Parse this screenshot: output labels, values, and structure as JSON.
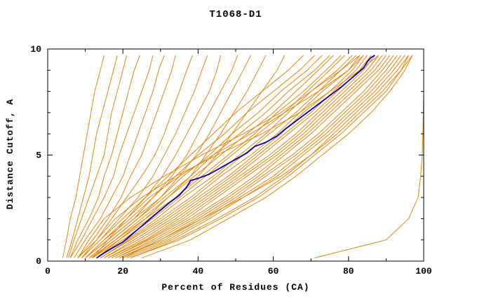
{
  "chart_data": {
    "type": "line",
    "title": "T1068-D1",
    "xlabel": "Percent of Residues (CA)",
    "ylabel": "Distance Cutoff, A",
    "xlim": [
      0,
      100
    ],
    "ylim": [
      0,
      10
    ],
    "xticks": [
      0,
      20,
      40,
      60,
      80,
      100
    ],
    "yticks": [
      0,
      5,
      10
    ],
    "x_minor_ticks": [
      10,
      30,
      50,
      70,
      90
    ],
    "y_minor_ticks": [
      1,
      2,
      3,
      4,
      6,
      7,
      8,
      9
    ],
    "grid": false,
    "legend": "none",
    "colors": {
      "models": "#e8860c",
      "highlight": "#0000bb",
      "frame": "#000000",
      "background": "#ffffff"
    },
    "y_levels": [
      0.15,
      1,
      2,
      3,
      4,
      5,
      6,
      7,
      8,
      9,
      9.7
    ],
    "model_curves_x_at_y_levels": [
      [
        4,
        5,
        6,
        7.5,
        8.5,
        9.5,
        10.5,
        11.5,
        12.5,
        14,
        15
      ],
      [
        5,
        6.5,
        8,
        9.5,
        11,
        12,
        13,
        14.5,
        16,
        17.5,
        18.5
      ],
      [
        5.5,
        7,
        9,
        11,
        13,
        15,
        16,
        17,
        18.5,
        20,
        21
      ],
      [
        6,
        8,
        11,
        13.5,
        15,
        17,
        18.5,
        20,
        21.5,
        23,
        24.5
      ],
      [
        6,
        9,
        12,
        15,
        17.5,
        19,
        21,
        23,
        25,
        27,
        28
      ],
      [
        7,
        10,
        14,
        17,
        20,
        22,
        24,
        26,
        28,
        29.5,
        31
      ],
      [
        8,
        12,
        16,
        19.5,
        22,
        25,
        27,
        29,
        31,
        33,
        34
      ],
      [
        8,
        13,
        17,
        21,
        25,
        28.5,
        31,
        33,
        35,
        37,
        38.5
      ],
      [
        9,
        14,
        19,
        24,
        28,
        31,
        34,
        36.5,
        39,
        41,
        42.5
      ],
      [
        10,
        15,
        21,
        26,
        30.5,
        34,
        37,
        40,
        43,
        45,
        46
      ],
      [
        10,
        16,
        23,
        28,
        33,
        37,
        40,
        43,
        46,
        49,
        50.5
      ],
      [
        11,
        17,
        24,
        30,
        35,
        39.5,
        43,
        46,
        49,
        52,
        54
      ],
      [
        12,
        18,
        26,
        32,
        38,
        42,
        46,
        49.5,
        53,
        56,
        58
      ],
      [
        13,
        19,
        27,
        34,
        40,
        45,
        49,
        53,
        57,
        61,
        63
      ],
      [
        9,
        14,
        20,
        26,
        32,
        38,
        44,
        50,
        57,
        64,
        68
      ],
      [
        10,
        15,
        22,
        28,
        34,
        40,
        47,
        53,
        60,
        67,
        71
      ],
      [
        10,
        16,
        23,
        30,
        36,
        43,
        49,
        56,
        62,
        69,
        73
      ],
      [
        11,
        17,
        24,
        31,
        38,
        44,
        51,
        58,
        64,
        71,
        75
      ],
      [
        11.5,
        18,
        25,
        32,
        39,
        46,
        53,
        60,
        66,
        72,
        76
      ],
      [
        12,
        19,
        26,
        34,
        41,
        48,
        55,
        61,
        68,
        74,
        78
      ],
      [
        13,
        20,
        28,
        35,
        42,
        49,
        56,
        63,
        69,
        75,
        79
      ],
      [
        13,
        21,
        29,
        36,
        44,
        51,
        58,
        64,
        70,
        77,
        81
      ],
      [
        14,
        21.5,
        30,
        38,
        45,
        52,
        59,
        66,
        72,
        78,
        82
      ],
      [
        14,
        22,
        31,
        39,
        46,
        54,
        61,
        67,
        73,
        80,
        83
      ],
      [
        15,
        23,
        32,
        40,
        48,
        55,
        62,
        68,
        75,
        81,
        84
      ],
      [
        15,
        24,
        33,
        41,
        49,
        56,
        63,
        70,
        76,
        82,
        85
      ],
      [
        16,
        25,
        34,
        42,
        50,
        57,
        64,
        71,
        77,
        83,
        86
      ],
      [
        16,
        26,
        35,
        43,
        51,
        59,
        66,
        72,
        78,
        84,
        87
      ],
      [
        17,
        26.5,
        36,
        44,
        52,
        60,
        67,
        73,
        79,
        85,
        88
      ],
      [
        17,
        27,
        37,
        45,
        53,
        61,
        68,
        74,
        80,
        86,
        89
      ],
      [
        18,
        28,
        38,
        47,
        55,
        62,
        69,
        75,
        81,
        87,
        90
      ],
      [
        18,
        29,
        39,
        48,
        56,
        63,
        70,
        76,
        82,
        88,
        91
      ],
      [
        19,
        30,
        40,
        49,
        57,
        65,
        72,
        78,
        84,
        89,
        92
      ],
      [
        19,
        31,
        41,
        50,
        58,
        66,
        73,
        79,
        85,
        90,
        93
      ],
      [
        20,
        32,
        42,
        51,
        60,
        67,
        74,
        80,
        86,
        91,
        94
      ],
      [
        21,
        33,
        43,
        52,
        61,
        68,
        75,
        81,
        87,
        92,
        95
      ],
      [
        22,
        34,
        45,
        55,
        63,
        70,
        77,
        83,
        89,
        94,
        96
      ],
      [
        25,
        38,
        48,
        58,
        66,
        73,
        80,
        86,
        91,
        95,
        97
      ],
      [
        12,
        16,
        21,
        27,
        35,
        44,
        54,
        63,
        72,
        80,
        84
      ],
      [
        8,
        11,
        15,
        22,
        31,
        41,
        52,
        62,
        70,
        78,
        83
      ],
      [
        9,
        13,
        18,
        25,
        34,
        45,
        57,
        67,
        75,
        83,
        88
      ],
      [
        20,
        30,
        41,
        52,
        62,
        70,
        76,
        82,
        88,
        93,
        96
      ],
      [
        22,
        35,
        46,
        56,
        64,
        71,
        78,
        84,
        90,
        94,
        97
      ],
      [
        71,
        90,
        96,
        98.5,
        99.2,
        99.6,
        99.8,
        99.9,
        100,
        100,
        100
      ]
    ],
    "highlight_curve": {
      "name": "highlighted-model",
      "points": [
        [
          13,
          0.15
        ],
        [
          16,
          0.5
        ],
        [
          20,
          0.9
        ],
        [
          24,
          1.5
        ],
        [
          28,
          2.1
        ],
        [
          32,
          2.7
        ],
        [
          35,
          3.1
        ],
        [
          37,
          3.5
        ],
        [
          38,
          3.8
        ],
        [
          40,
          3.9
        ],
        [
          43,
          4.1
        ],
        [
          46,
          4.4
        ],
        [
          50,
          4.8
        ],
        [
          53,
          5.1
        ],
        [
          55,
          5.4
        ],
        [
          58,
          5.6
        ],
        [
          61,
          5.9
        ],
        [
          63,
          6.2
        ],
        [
          66,
          6.6
        ],
        [
          69,
          7.0
        ],
        [
          72,
          7.4
        ],
        [
          75,
          7.8
        ],
        [
          78,
          8.2
        ],
        [
          80,
          8.5
        ],
        [
          82,
          8.8
        ],
        [
          84,
          9.1
        ],
        [
          85,
          9.4
        ],
        [
          86,
          9.6
        ],
        [
          87,
          9.7
        ]
      ]
    }
  }
}
